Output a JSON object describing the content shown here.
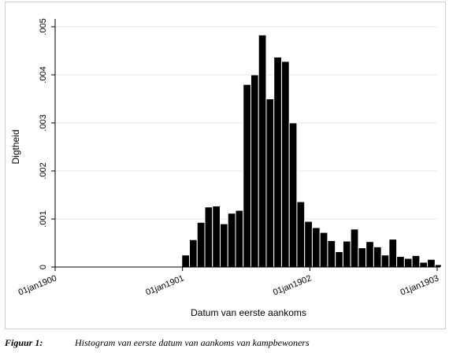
{
  "chart_data": {
    "type": "bar",
    "title": "",
    "xlabel": "Datum van eerste aankoms",
    "ylabel": "Digtheid",
    "ylim": [
      0,
      0.005
    ],
    "yticks": [
      {
        "value": 0,
        "label": "0"
      },
      {
        "value": 0.001,
        "label": ".001"
      },
      {
        "value": 0.002,
        "label": ".002"
      },
      {
        "value": 0.003,
        "label": ".003"
      },
      {
        "value": 0.004,
        "label": ".004"
      },
      {
        "value": 0.005,
        "label": ".005"
      }
    ],
    "xticks": [
      {
        "value": 0,
        "label": "01jan1900"
      },
      {
        "value": 365,
        "label": "01jan1901"
      },
      {
        "value": 730,
        "label": "01jan1902"
      },
      {
        "value": 1095,
        "label": "01jan1903"
      }
    ],
    "xlim": [
      0,
      1095
    ],
    "grid": true,
    "legend": "none",
    "bar_color": "#000000",
    "bins": [
      {
        "start": 363,
        "end": 385,
        "value": 0.00025
      },
      {
        "start": 385,
        "end": 407,
        "value": 0.00057
      },
      {
        "start": 407,
        "end": 429,
        "value": 0.00093
      },
      {
        "start": 429,
        "end": 451,
        "value": 0.00125
      },
      {
        "start": 451,
        "end": 473,
        "value": 0.00127
      },
      {
        "start": 473,
        "end": 495,
        "value": 0.0009
      },
      {
        "start": 495,
        "end": 517,
        "value": 0.00112
      },
      {
        "start": 517,
        "end": 539,
        "value": 0.00118
      },
      {
        "start": 539,
        "end": 561,
        "value": 0.0038
      },
      {
        "start": 561,
        "end": 583,
        "value": 0.004
      },
      {
        "start": 583,
        "end": 605,
        "value": 0.00483
      },
      {
        "start": 605,
        "end": 627,
        "value": 0.0035
      },
      {
        "start": 627,
        "end": 649,
        "value": 0.00437
      },
      {
        "start": 649,
        "end": 671,
        "value": 0.00428
      },
      {
        "start": 671,
        "end": 693,
        "value": 0.003
      },
      {
        "start": 693,
        "end": 715,
        "value": 0.00136
      },
      {
        "start": 715,
        "end": 737,
        "value": 0.00095
      },
      {
        "start": 737,
        "end": 759,
        "value": 0.00082
      },
      {
        "start": 759,
        "end": 781,
        "value": 0.00072
      },
      {
        "start": 781,
        "end": 803,
        "value": 0.00055
      },
      {
        "start": 803,
        "end": 825,
        "value": 0.00032
      },
      {
        "start": 825,
        "end": 847,
        "value": 0.00054
      },
      {
        "start": 847,
        "end": 869,
        "value": 0.00079
      },
      {
        "start": 869,
        "end": 891,
        "value": 0.0004
      },
      {
        "start": 891,
        "end": 913,
        "value": 0.00053
      },
      {
        "start": 913,
        "end": 935,
        "value": 0.00042
      },
      {
        "start": 935,
        "end": 957,
        "value": 0.00025
      },
      {
        "start": 957,
        "end": 979,
        "value": 0.00058
      },
      {
        "start": 979,
        "end": 1001,
        "value": 0.00022
      },
      {
        "start": 1001,
        "end": 1023,
        "value": 0.00018
      },
      {
        "start": 1023,
        "end": 1045,
        "value": 0.00024
      },
      {
        "start": 1045,
        "end": 1067,
        "value": 0.0001
      },
      {
        "start": 1067,
        "end": 1089,
        "value": 0.00016
      },
      {
        "start": 1089,
        "end": 1111,
        "value": 5e-05
      }
    ]
  },
  "caption": {
    "label": "Figuur 1:",
    "text": "Histogram van eerste datum van aankoms van kampbewoners"
  }
}
